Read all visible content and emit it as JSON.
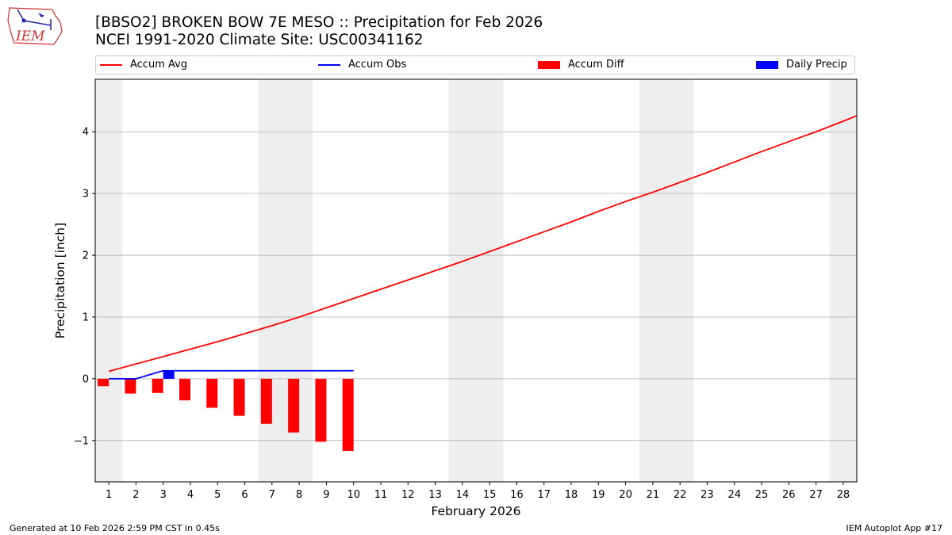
{
  "header": {
    "title": "[BBSO2] BROKEN BOW 7E MESO :: Precipitation for Feb 2026",
    "subtitle": "NCEI 1991-2020 Climate Site: USC00341162",
    "logo_text": "IEM"
  },
  "footer": {
    "generated": "Generated at 10 Feb 2026 2:59 PM CST in 0.45s",
    "app": "IEM Autoplot App #17"
  },
  "colors": {
    "accum_avg": "#ff0000",
    "accum_obs": "#0000ff",
    "accum_diff": "#ff0000",
    "daily_precip": "#0000ff",
    "weekend_shade": "#eeeeee",
    "grid": "#b0b0b0"
  },
  "chart_data": {
    "type": "line",
    "xlabel": "February 2026",
    "ylabel": "Precipitation [inch]",
    "xlim": [
      0.5,
      28.5
    ],
    "ylim": [
      -1.67,
      4.85
    ],
    "yticks": [
      -1,
      0,
      1,
      2,
      3,
      4
    ],
    "ytick_labels": [
      "−1",
      "0",
      "1",
      "2",
      "3",
      "4"
    ],
    "days": [
      1,
      2,
      3,
      4,
      5,
      6,
      7,
      8,
      9,
      10,
      11,
      12,
      13,
      14,
      15,
      16,
      17,
      18,
      19,
      20,
      21,
      22,
      23,
      24,
      25,
      26,
      27,
      28
    ],
    "weekend_spans": [
      [
        0.5,
        1.5
      ],
      [
        6.5,
        8.5
      ],
      [
        13.5,
        15.5
      ],
      [
        20.5,
        22.5
      ],
      [
        27.5,
        28.5
      ]
    ],
    "grid": "y",
    "legend_position": "top",
    "legend": [
      "Accum Avg",
      "Accum Obs",
      "Accum Diff",
      "Daily Precip"
    ],
    "series": [
      {
        "name": "Accum Avg",
        "kind": "line",
        "x": [
          1,
          2,
          3,
          4,
          5,
          6,
          7,
          8,
          9,
          10,
          11,
          12,
          13,
          14,
          15,
          16,
          17,
          18,
          19,
          20,
          21,
          22,
          23,
          24,
          25,
          26,
          27,
          28,
          28.5
        ],
        "values": [
          0.12,
          0.24,
          0.36,
          0.48,
          0.6,
          0.73,
          0.86,
          1.0,
          1.15,
          1.3,
          1.45,
          1.6,
          1.75,
          1.9,
          2.06,
          2.22,
          2.38,
          2.54,
          2.71,
          2.87,
          3.02,
          3.18,
          3.34,
          3.51,
          3.68,
          3.84,
          4.0,
          4.17,
          4.26
        ]
      },
      {
        "name": "Accum Obs",
        "kind": "line",
        "x": [
          1,
          2,
          3,
          4,
          5,
          6,
          7,
          8,
          9,
          10
        ],
        "values": [
          0.0,
          0.0,
          0.13,
          0.13,
          0.13,
          0.13,
          0.13,
          0.13,
          0.13,
          0.13
        ]
      },
      {
        "name": "Accum Diff",
        "kind": "bar",
        "x": [
          1,
          2,
          3,
          4,
          5,
          6,
          7,
          8,
          9,
          10
        ],
        "values": [
          -0.12,
          -0.24,
          -0.23,
          -0.35,
          -0.47,
          -0.6,
          -0.73,
          -0.87,
          -1.02,
          -1.17
        ]
      },
      {
        "name": "Daily Precip",
        "kind": "bar",
        "x": [
          3
        ],
        "values": [
          0.13
        ]
      }
    ]
  }
}
